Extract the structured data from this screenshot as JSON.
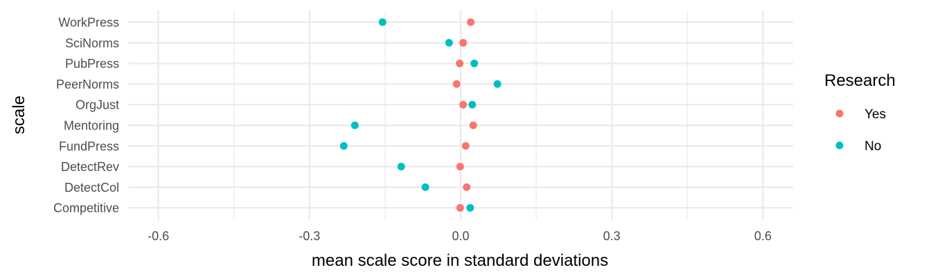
{
  "chart_data": {
    "type": "scatter",
    "title": "",
    "xlabel": "mean scale score in standard deviations",
    "ylabel": "scale",
    "xlim": [
      -0.66,
      0.66
    ],
    "x_ticks": [
      -0.6,
      -0.3,
      0.0,
      0.3,
      0.6
    ],
    "x_tick_labels": [
      "-0.6",
      "-0.3",
      "0.0",
      "0.3",
      "0.6"
    ],
    "categories": [
      "WorkPress",
      "SciNorms",
      "PubPress",
      "PeerNorms",
      "OrgJust",
      "Mentoring",
      "FundPress",
      "DetectRev",
      "DetectCol",
      "Competitive"
    ],
    "legend_title": "Research",
    "legend_position": "right",
    "grid": true,
    "series": [
      {
        "name": "Yes",
        "color": "#F8766D",
        "values": [
          0.02,
          0.005,
          -0.002,
          -0.008,
          0.005,
          0.025,
          0.01,
          -0.001,
          0.012,
          -0.001
        ]
      },
      {
        "name": "No",
        "color": "#00BFC4",
        "values": [
          -0.155,
          -0.023,
          0.027,
          0.073,
          0.023,
          -0.21,
          -0.232,
          -0.118,
          -0.07,
          0.019
        ]
      }
    ]
  }
}
